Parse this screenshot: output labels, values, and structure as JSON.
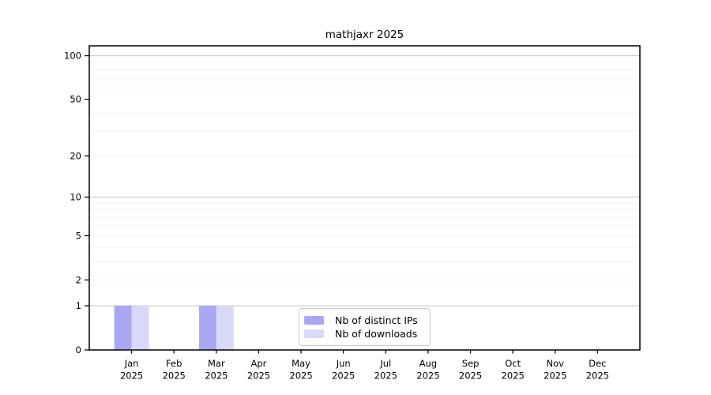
{
  "chart_data": {
    "type": "bar",
    "title": "mathjaxr 2025",
    "categories": [
      "Jan",
      "Feb",
      "Mar",
      "Apr",
      "May",
      "Jun",
      "Jul",
      "Aug",
      "Sep",
      "Oct",
      "Nov",
      "Dec"
    ],
    "year": "2025",
    "series": [
      {
        "name": "Nb of distinct IPs",
        "color": "#a8a8f2",
        "values": [
          1,
          0,
          1,
          0,
          0,
          0,
          0,
          0,
          0,
          0,
          0,
          0
        ]
      },
      {
        "name": "Nb of downloads",
        "color": "#d9d9f8",
        "values": [
          1,
          0,
          1,
          0,
          0,
          0,
          0,
          0,
          0,
          0,
          0,
          0
        ]
      }
    ],
    "xlabel": "",
    "ylabel": "",
    "yscale": "log10(1+y)",
    "ylim": [
      0,
      117
    ],
    "yticks": [
      0,
      1,
      2,
      5,
      10,
      20,
      50,
      100
    ],
    "major_gridlines": [
      1,
      10,
      100
    ],
    "minor_gridlines": [
      2,
      3,
      4,
      5,
      6,
      7,
      8,
      9,
      20,
      30,
      40,
      60,
      70,
      80,
      90
    ],
    "grid": "on",
    "legend_position": "inside-bottom-center",
    "colors": {
      "axis": "#000000",
      "grid_major": "#c9c9c9",
      "grid_minor": "#f0f0f0",
      "background": "#ffffff",
      "text": "#000000"
    }
  }
}
